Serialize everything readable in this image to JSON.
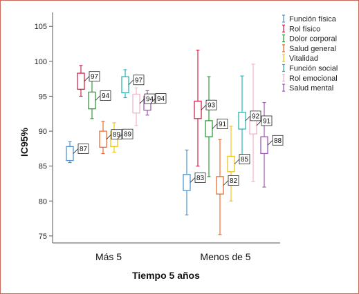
{
  "chart_data": {
    "type": "box",
    "title": "",
    "xlabel": "Tiempo 5 años",
    "ylabel": "IC95%",
    "ylim": [
      74,
      107
    ],
    "yticks": [
      75,
      80,
      85,
      90,
      95,
      100,
      105
    ],
    "grid": false,
    "legend_position": "top-right",
    "categories": [
      "Más 5",
      "Menos de 5"
    ],
    "series": [
      {
        "name": "Función física",
        "color": "#4f94d4",
        "values": [
          {
            "whisker_low": 85.5,
            "box_low": 85.8,
            "label": "87",
            "box_high": 87.8,
            "whisker_high": 88.5
          },
          {
            "whisker_low": 78.0,
            "box_low": 81.5,
            "label": "83",
            "box_high": 83.8,
            "whisker_high": 87.3
          }
        ]
      },
      {
        "name": "Rol físico",
        "color": "#d6244c",
        "values": [
          {
            "whisker_low": 95.0,
            "box_low": 96.0,
            "label": "97",
            "box_high": 98.3,
            "whisker_high": 99.4
          },
          {
            "whisker_low": 85.0,
            "box_low": 91.8,
            "label": "93",
            "box_high": 94.3,
            "whisker_high": 101.6
          }
        ]
      },
      {
        "name": "Dolor corporal",
        "color": "#2e9e3c",
        "values": [
          {
            "whisker_low": 91.8,
            "box_low": 93.2,
            "label": "94",
            "box_high": 95.6,
            "whisker_high": 97.2
          },
          {
            "whisker_low": 83.5,
            "box_low": 89.2,
            "label": "91",
            "box_high": 91.5,
            "whisker_high": 97.8
          }
        ]
      },
      {
        "name": "Salud general",
        "color": "#ef6a2e",
        "values": [
          {
            "whisker_low": 86.8,
            "box_low": 87.7,
            "label": "89",
            "box_high": 90.0,
            "whisker_high": 91.4
          },
          {
            "whisker_low": 75.2,
            "box_low": 81.0,
            "label": "82",
            "box_high": 83.5,
            "whisker_high": 88.8
          }
        ]
      },
      {
        "name": "Vitalidad",
        "color": "#f2c418",
        "values": [
          {
            "whisker_low": 87.0,
            "box_low": 87.8,
            "label": "89",
            "box_high": 90.0,
            "whisker_high": 91.2
          },
          {
            "whisker_low": 80.0,
            "box_low": 84.2,
            "label": "85",
            "box_high": 86.4,
            "whisker_high": 90.7
          }
        ]
      },
      {
        "name": "Función social",
        "color": "#28b6b0",
        "values": [
          {
            "whisker_low": 94.8,
            "box_low": 95.5,
            "label": "97",
            "box_high": 97.8,
            "whisker_high": 98.8
          },
          {
            "whisker_low": 85.6,
            "box_low": 90.3,
            "label": "92",
            "box_high": 92.7,
            "whisker_high": 97.9
          }
        ]
      },
      {
        "name": "Rol emocional",
        "color": "#f4b4cc",
        "values": [
          {
            "whisker_low": 90.8,
            "box_low": 92.6,
            "label": "94",
            "box_high": 95.3,
            "whisker_high": 96.2
          },
          {
            "whisker_low": 82.8,
            "box_low": 89.6,
            "label": "91",
            "box_high": 92.0,
            "whisker_high": 99.6
          }
        ]
      },
      {
        "name": "Salud mental",
        "color": "#9c5bb0",
        "values": [
          {
            "whisker_low": 92.3,
            "box_low": 93.0,
            "label": "94",
            "box_high": 95.0,
            "whisker_high": 95.8
          },
          {
            "whisker_low": 82.0,
            "box_low": 86.8,
            "label": "88",
            "box_high": 89.2,
            "whisker_high": 94.1
          }
        ]
      }
    ]
  }
}
